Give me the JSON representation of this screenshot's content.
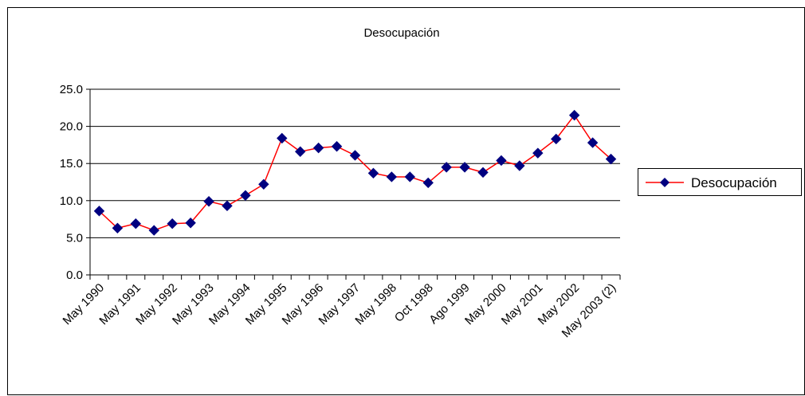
{
  "chart_data": {
    "type": "line",
    "title": "Desocupación",
    "categories": [
      "May 1990",
      null,
      "May 1991",
      null,
      "May 1992",
      null,
      "May 1993",
      null,
      "May 1994",
      null,
      "May 1995",
      null,
      "May 1996",
      null,
      "May 1997",
      null,
      "May 1998",
      null,
      "Oct 1998",
      null,
      "Ago 1999",
      null,
      "May 2000",
      null,
      "May 2001",
      null,
      "May 2002",
      null,
      "May 2003 (2)"
    ],
    "series": [
      {
        "name": "Desocupación",
        "color": "#ff0000",
        "marker_color": "#000080",
        "values": [
          8.6,
          6.3,
          6.9,
          6.0,
          6.9,
          7.0,
          9.9,
          9.3,
          10.7,
          12.2,
          18.4,
          16.6,
          17.1,
          17.3,
          16.1,
          13.7,
          13.2,
          13.2,
          12.4,
          14.5,
          14.5,
          13.8,
          15.4,
          14.7,
          16.4,
          18.3,
          21.5,
          17.8,
          15.6
        ]
      }
    ],
    "ylim": [
      0,
      25
    ],
    "yticks": [
      {
        "value": 0,
        "label": "0.0"
      },
      {
        "value": 5,
        "label": "5.0"
      },
      {
        "value": 10,
        "label": "10.0"
      },
      {
        "value": 15,
        "label": "15.0"
      },
      {
        "value": 20,
        "label": "20.0"
      },
      {
        "value": 25,
        "label": "25.0"
      }
    ],
    "grid": true,
    "legend": "right"
  }
}
